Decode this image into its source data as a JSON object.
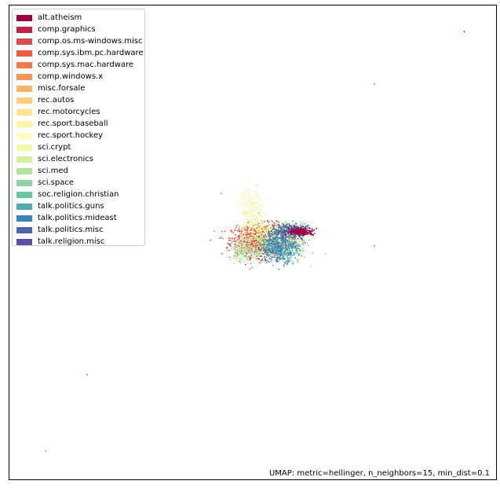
{
  "chart_data": {
    "type": "scatter",
    "title": "",
    "xlabel": "",
    "ylabel": "",
    "axes_ticks": false,
    "grid": false,
    "legend_position": "top-left",
    "annotation": "UMAP: metric=hellinger, n_neighbors=15, min_dist=0.1",
    "categories": [
      {
        "name": "alt.atheism",
        "color": "#9e0142"
      },
      {
        "name": "comp.graphics",
        "color": "#c0254a"
      },
      {
        "name": "comp.os.ms-windows.misc",
        "color": "#dc494c"
      },
      {
        "name": "comp.sys.ibm.pc.hardware",
        "color": "#e95d47"
      },
      {
        "name": "comp.sys.mac.hardware",
        "color": "#f47a4a"
      },
      {
        "name": "comp.windows.x",
        "color": "#f99558"
      },
      {
        "name": "misc.forsale",
        "color": "#fcb366"
      },
      {
        "name": "rec.autos",
        "color": "#fece7c"
      },
      {
        "name": "rec.motorcycles",
        "color": "#fee491"
      },
      {
        "name": "rec.sport.baseball",
        "color": "#fff3aa"
      },
      {
        "name": "rec.sport.hockey",
        "color": "#fbfdb9"
      },
      {
        "name": "sci.crypt",
        "color": "#eff8a6"
      },
      {
        "name": "sci.electronics",
        "color": "#d5ee9b"
      },
      {
        "name": "sci.med",
        "color": "#b3e0a2"
      },
      {
        "name": "sci.space",
        "color": "#8ed1a4"
      },
      {
        "name": "soc.religion.christian",
        "color": "#6bc3a5"
      },
      {
        "name": "talk.politics.guns",
        "color": "#50a9af"
      },
      {
        "name": "talk.politics.mideast",
        "color": "#3586bc"
      },
      {
        "name": "talk.politics.misc",
        "color": "#4b66ad"
      },
      {
        "name": "talk.religion.misc",
        "color": "#5e4fa2"
      }
    ],
    "clusters": [
      {
        "category": 4,
        "cx": 0.0,
        "cy": 0.02,
        "sx": 0.6,
        "sy": 0.35,
        "n": 420
      },
      {
        "category": 3,
        "cx": -0.2,
        "cy": 0.1,
        "sx": 0.55,
        "sy": 0.3,
        "n": 360
      },
      {
        "category": 2,
        "cx": -0.35,
        "cy": 0.0,
        "sx": 0.5,
        "sy": 0.3,
        "n": 300
      },
      {
        "category": 1,
        "cx": -0.1,
        "cy": -0.1,
        "sx": 0.55,
        "sy": 0.3,
        "n": 220
      },
      {
        "category": 5,
        "cx": 0.1,
        "cy": 0.1,
        "sx": 0.5,
        "sy": 0.3,
        "n": 240
      },
      {
        "category": 6,
        "cx": 0.3,
        "cy": 0.2,
        "sx": 0.45,
        "sy": 0.25,
        "n": 200
      },
      {
        "category": 7,
        "cx": 0.4,
        "cy": 0.0,
        "sx": 0.4,
        "sy": 0.25,
        "n": 200
      },
      {
        "category": 8,
        "cx": 0.5,
        "cy": 0.1,
        "sx": 0.4,
        "sy": 0.25,
        "n": 160
      },
      {
        "category": 9,
        "cx": 0.2,
        "cy": 0.3,
        "sx": 0.5,
        "sy": 0.25,
        "n": 180
      },
      {
        "category": 10,
        "cx": 0.35,
        "cy": 0.2,
        "sx": 0.45,
        "sy": 0.25,
        "n": 200
      },
      {
        "category": 11,
        "cx": -0.55,
        "cy": 1.2,
        "sx": 0.25,
        "sy": 0.6,
        "n": 260
      },
      {
        "category": 12,
        "cx": 0.1,
        "cy": -0.2,
        "sx": 0.5,
        "sy": 0.3,
        "n": 180
      },
      {
        "category": 13,
        "cx": -0.9,
        "cy": -0.35,
        "sx": 0.25,
        "sy": 0.25,
        "n": 200
      },
      {
        "category": 14,
        "cx": 1.0,
        "cy": -0.3,
        "sx": 0.35,
        "sy": 0.25,
        "n": 180
      },
      {
        "category": 15,
        "cx": 1.1,
        "cy": 0.45,
        "sx": 0.35,
        "sy": 0.15,
        "n": 220
      },
      {
        "category": 16,
        "cx": 0.6,
        "cy": -0.2,
        "sx": 0.4,
        "sy": 0.3,
        "n": 240
      },
      {
        "category": 17,
        "cx": 0.5,
        "cy": -0.3,
        "sx": 0.4,
        "sy": 0.3,
        "n": 260
      },
      {
        "category": 18,
        "cx": 0.7,
        "cy": 0.3,
        "sx": 0.4,
        "sy": 0.2,
        "n": 200
      },
      {
        "category": 19,
        "cx": 1.3,
        "cy": 0.5,
        "sx": 0.3,
        "sy": 0.1,
        "n": 120
      },
      {
        "category": 0,
        "cx": 1.5,
        "cy": 0.4,
        "sx": 0.25,
        "sy": 0.08,
        "n": 220
      }
    ],
    "outliers": [
      {
        "category": 0,
        "x": 8.2,
        "y": 8.8
      },
      {
        "category": 2,
        "x": 4.5,
        "y": 6.6
      },
      {
        "category": 2,
        "x": -7.3,
        "y": -5.6
      },
      {
        "category": 3,
        "x": -9.0,
        "y": -8.8
      },
      {
        "category": 19,
        "x": 4.5,
        "y": -0.2
      },
      {
        "category": 2,
        "x": -1.8,
        "y": 2.0
      }
    ],
    "xlim": [
      -10.5,
      9.5
    ],
    "ylim": [
      -10.0,
      9.9
    ]
  }
}
